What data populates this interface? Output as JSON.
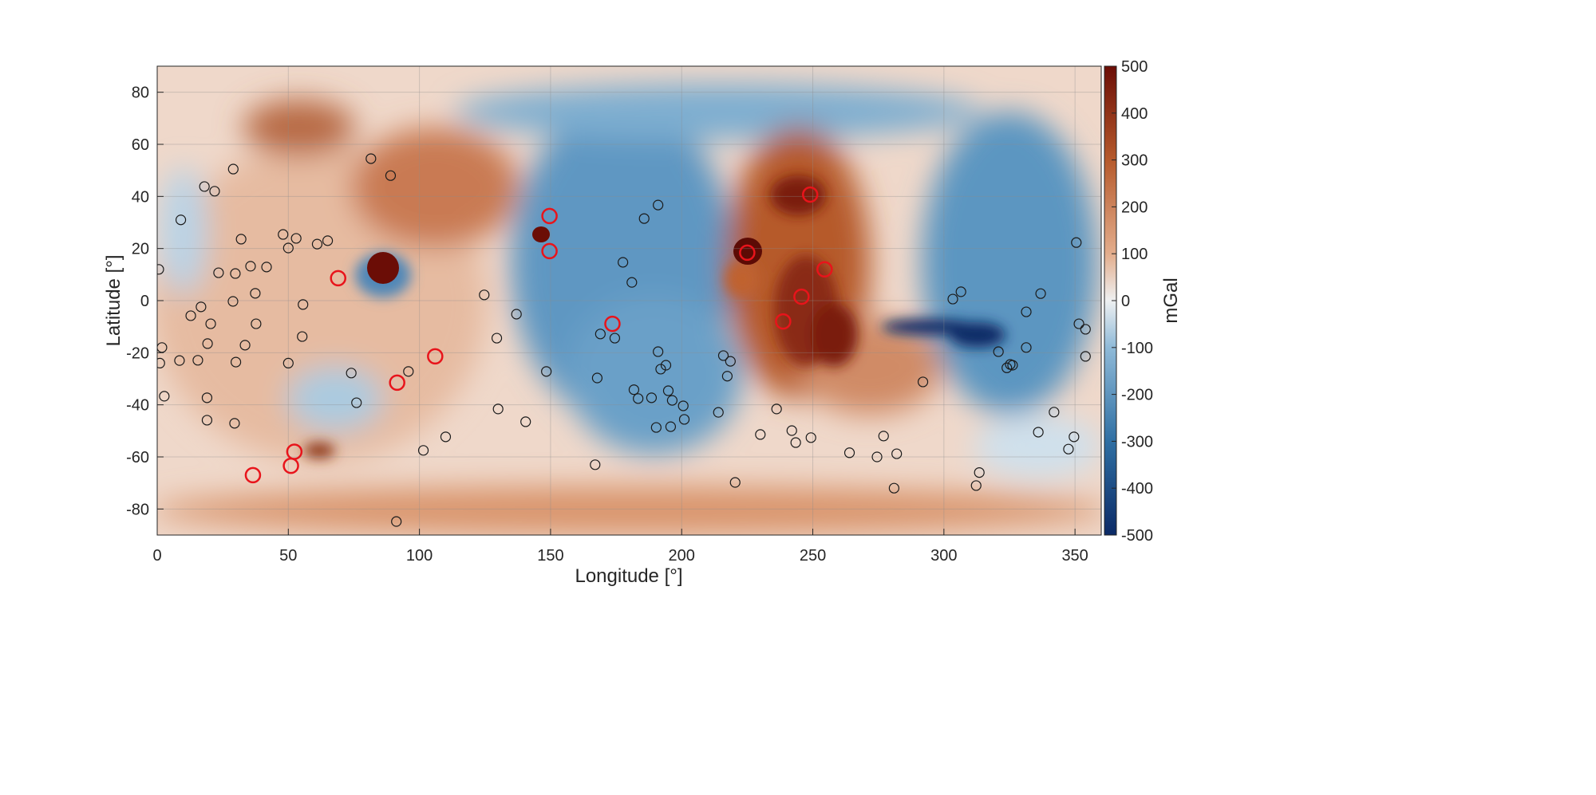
{
  "chart_data": {
    "type": "heatmap",
    "xlabel": "Longitude [°]",
    "ylabel": "Latitude [°]",
    "xlim": [
      0,
      360
    ],
    "ylim": [
      -90,
      90
    ],
    "xticks": [
      "0",
      "50",
      "100",
      "150",
      "200",
      "250",
      "300",
      "350"
    ],
    "yticks": [
      "80",
      "60",
      "40",
      "20",
      "0",
      "-20",
      "-40",
      "-60",
      "-80"
    ],
    "grid": true,
    "colorbar": {
      "label": "mGal",
      "range": [
        -500,
        500
      ],
      "ticks": [
        "500",
        "400",
        "300",
        "200",
        "100",
        "0",
        "-100",
        "-200",
        "-300",
        "-400",
        "-500"
      ],
      "colormap": [
        "#0b2a66",
        "#2f6fa3",
        "#8fbad8",
        "#eef0f1",
        "#e3ad8c",
        "#b65a2c",
        "#6b0d06"
      ]
    },
    "series": [
      {
        "marker": "circle",
        "color": "#e8141b",
        "points": [
          [
            249,
            40.7
          ],
          [
            149.6,
            32.5
          ],
          [
            149.6,
            19
          ],
          [
            225,
            18.4
          ],
          [
            254.5,
            12
          ],
          [
            69,
            8.6
          ],
          [
            245.7,
            1.5
          ],
          [
            173.6,
            -8.9
          ],
          [
            238.7,
            -8
          ],
          [
            106,
            -21.4
          ],
          [
            91.5,
            -31.5
          ],
          [
            52.3,
            -58
          ],
          [
            51,
            -63.4
          ],
          [
            36.5,
            -67
          ]
        ]
      },
      {
        "marker": "circle",
        "color": "#1a1a1a",
        "points": [
          [
            29,
            50.5
          ],
          [
            81.5,
            54.5
          ],
          [
            89,
            48
          ],
          [
            18,
            43.8
          ],
          [
            21.9,
            42
          ],
          [
            9,
            31
          ],
          [
            191,
            36.7
          ],
          [
            185.7,
            31.5
          ],
          [
            32,
            23.6
          ],
          [
            48,
            25.4
          ],
          [
            53,
            23.9
          ],
          [
            50,
            20.2
          ],
          [
            61,
            21.7
          ],
          [
            65,
            23
          ],
          [
            35.6,
            13.2
          ],
          [
            41.7,
            12.9
          ],
          [
            23.4,
            10.7
          ],
          [
            29.8,
            10.4
          ],
          [
            0.6,
            12
          ],
          [
            37.4,
            2.8
          ],
          [
            28.9,
            -0.3
          ],
          [
            16.7,
            -2.4
          ],
          [
            55.6,
            -1.5
          ],
          [
            12.8,
            -5.8
          ],
          [
            20.4,
            -8.9
          ],
          [
            37.7,
            -8.9
          ],
          [
            33.5,
            -17.1
          ],
          [
            19.2,
            -16.5
          ],
          [
            1.8,
            -18
          ],
          [
            15.5,
            -22.9
          ],
          [
            8.5,
            -23
          ],
          [
            30,
            -23.6
          ],
          [
            1,
            -24
          ],
          [
            50,
            -24
          ],
          [
            55.3,
            -13.8
          ],
          [
            2.7,
            -36.7
          ],
          [
            19,
            -37.3
          ],
          [
            19,
            -45.9
          ],
          [
            29.5,
            -47.1
          ],
          [
            74,
            -27.8
          ],
          [
            76,
            -39.2
          ],
          [
            95.8,
            -27.2
          ],
          [
            129.5,
            -14.4
          ],
          [
            137,
            -5.2
          ],
          [
            124.7,
            2.2
          ],
          [
            148.4,
            -27.2
          ],
          [
            130,
            -41.6
          ],
          [
            140.5,
            -46.5
          ],
          [
            110,
            -52.3
          ],
          [
            101.5,
            -57.5
          ],
          [
            91.2,
            -84.8
          ],
          [
            167,
            -63
          ],
          [
            177.6,
            14.7
          ],
          [
            181,
            7
          ],
          [
            169,
            -12.8
          ],
          [
            174.5,
            -14.4
          ],
          [
            167.8,
            -29.7
          ],
          [
            191,
            -19.6
          ],
          [
            192,
            -26.3
          ],
          [
            194,
            -24.8
          ],
          [
            181.8,
            -34.2
          ],
          [
            183.4,
            -37.6
          ],
          [
            188.5,
            -37.3
          ],
          [
            194.9,
            -34.6
          ],
          [
            196.4,
            -38.3
          ],
          [
            200.6,
            -40.4
          ],
          [
            201,
            -45.6
          ],
          [
            190.3,
            -48.7
          ],
          [
            195.8,
            -48.4
          ],
          [
            215.9,
            -21.1
          ],
          [
            218.6,
            -23.3
          ],
          [
            217.4,
            -29
          ],
          [
            214,
            -42.9
          ],
          [
            236.2,
            -41.6
          ],
          [
            230,
            -51.4
          ],
          [
            242,
            -49.9
          ],
          [
            243.5,
            -54.5
          ],
          [
            249.3,
            -52.6
          ],
          [
            220.4,
            -69.8
          ],
          [
            264,
            -58.4
          ],
          [
            274.5,
            -60
          ],
          [
            277,
            -52
          ],
          [
            282,
            -58.8
          ],
          [
            281,
            -72
          ],
          [
            292,
            -31.2
          ],
          [
            303.4,
            0.6
          ],
          [
            306.5,
            3.4
          ],
          [
            320.8,
            -19.6
          ],
          [
            331.4,
            -18
          ],
          [
            331.4,
            -4.3
          ],
          [
            336.9,
            2.7
          ],
          [
            324,
            -25.8
          ],
          [
            325.3,
            -24.5
          ],
          [
            326.2,
            -24.8
          ],
          [
            336,
            -50.5
          ],
          [
            313.5,
            -66
          ],
          [
            312.3,
            -71
          ],
          [
            347.5,
            -57
          ],
          [
            342,
            -42.8
          ],
          [
            349.6,
            -52.3
          ],
          [
            350.5,
            22.3
          ],
          [
            351.5,
            -8.9
          ],
          [
            354,
            -11
          ],
          [
            354,
            -21.4
          ]
        ]
      }
    ]
  }
}
